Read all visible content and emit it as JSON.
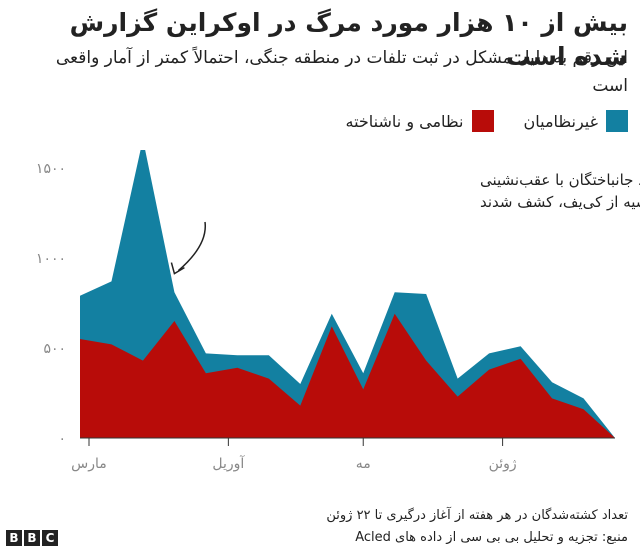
{
  "chart_data": {
    "type": "area",
    "stacked": true,
    "title": "بیش از ۱۰ هزار مورد مرگ در اوکراین گزارش شده است",
    "subtitle": "این رقم به دلیل مشکل در ثبت تلفات در  منطقه جنگی، احتمالاً کمتر از آمار واقعی است",
    "x": [
      "2022-02-27",
      "2022-03-06",
      "2022-03-13",
      "2022-03-20",
      "2022-03-27",
      "2022-04-03",
      "2022-04-10",
      "2022-04-17",
      "2022-04-24",
      "2022-05-01",
      "2022-05-08",
      "2022-05-15",
      "2022-05-22",
      "2022-05-29",
      "2022-06-05",
      "2022-06-12",
      "2022-06-19",
      "2022-06-26"
    ],
    "series": [
      {
        "name": "نظامی و ناشناخته",
        "color": "#b80c09",
        "values": [
          550,
          520,
          430,
          650,
          360,
          390,
          330,
          180,
          620,
          270,
          690,
          430,
          230,
          380,
          440,
          220,
          160,
          0
        ]
      },
      {
        "name": "غیرنظامیان",
        "color": "#1380a1",
        "values": [
          240,
          350,
          1230,
          160,
          110,
          70,
          130,
          120,
          70,
          90,
          120,
          370,
          100,
          90,
          70,
          90,
          60,
          0
        ]
      }
    ],
    "ylim": [
      0,
      1600
    ],
    "yticks": [
      {
        "value": 0,
        "label": "۰"
      },
      {
        "value": 500,
        "label": "۵۰۰"
      },
      {
        "value": 1000,
        "label": "۱۰۰۰"
      },
      {
        "value": 1500,
        "label": "۱۵۰۰"
      }
    ],
    "xticks": [
      {
        "date": "2022-03-01",
        "label": "مارس"
      },
      {
        "date": "2022-04-01",
        "label": "آوریل"
      },
      {
        "date": "2022-05-01",
        "label": "مه"
      },
      {
        "date": "2022-06-01",
        "label": "ژوئن"
      }
    ],
    "annotation": {
      "lines": [
        "اجساد جانباختگان با عقب‌نشینی",
        "ارتش روسیه از کی‌یف، کشف شدند"
      ],
      "target_date": "2022-03-20"
    },
    "legend_position": "top-right",
    "grid": false
  },
  "legend": {
    "civilians": "غیرنظامیان",
    "military": "نظامی و ناشناخته"
  },
  "footnote": "تعداد کشته‌شدگان در هر هفته از آغاز درگیری تا ۲۲ ژوئن",
  "source": "منبع: تجزیه و تحلیل بی بی سی از داده های Acled",
  "logo": [
    "B",
    "B",
    "C"
  ]
}
